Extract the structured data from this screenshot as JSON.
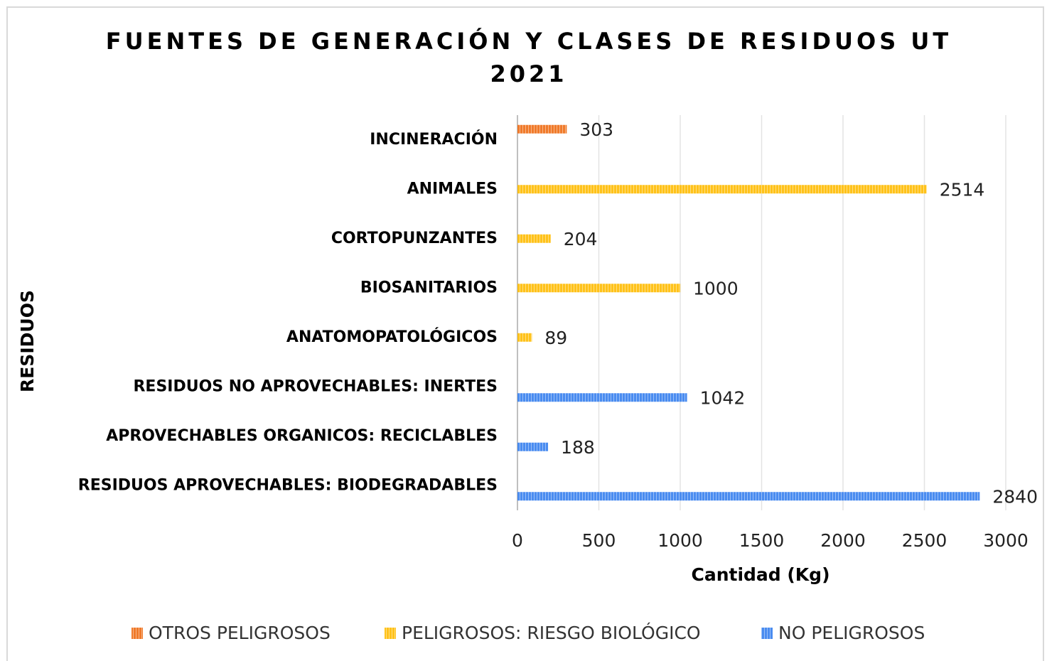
{
  "chart_data": {
    "type": "bar",
    "orientation": "horizontal",
    "title": [
      "FUENTES DE GENERACIÓN Y CLASES DE RESIDUOS UT",
      "2021"
    ],
    "x_label": "Cantidad (Kg)",
    "y_label": "RESIDUOS",
    "categories": [
      "INCINERACIÓN",
      "ANIMALES",
      "CORTOPUNZANTES",
      "BIOSANITARIOS",
      "ANATOMOPATOLÓGICOS",
      "RESIDUOS NO  APROVECHABLES: INERTES",
      "APROVECHABLES ORGANICOS: RECICLABLES",
      "RESIDUOS APROVECHABLES: BIODEGRADABLES"
    ],
    "series": [
      {
        "name": "OTROS PELIGROSOS",
        "color": "#f07a2a",
        "values": [
          303,
          null,
          null,
          null,
          null,
          null,
          null,
          null
        ]
      },
      {
        "name": "PELIGROSOS: RIESGO BIOLÓGICO",
        "color": "#ffc21a",
        "values": [
          null,
          2514,
          204,
          1000,
          89,
          null,
          null,
          null
        ]
      },
      {
        "name": "NO PELIGROSOS",
        "color": "#4a8cf0",
        "values": [
          null,
          null,
          null,
          null,
          null,
          1042,
          188,
          2840
        ]
      }
    ],
    "xlim": [
      0,
      3000
    ],
    "xticks": [
      0,
      500,
      1000,
      1500,
      2000,
      2500,
      3000
    ],
    "grid": true,
    "legend": "bottom"
  }
}
